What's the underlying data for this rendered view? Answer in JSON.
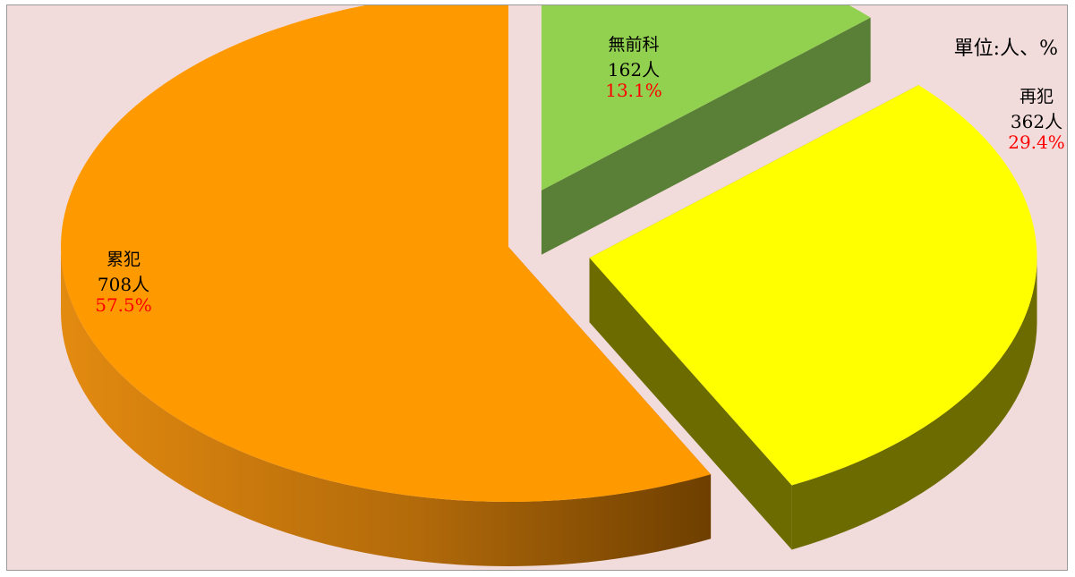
{
  "chart_data": {
    "type": "pie",
    "unit_label": "單位:人、%",
    "slices": [
      {
        "name": "無前科",
        "count_label": "162人",
        "value": 162,
        "percent_label": "13.1%",
        "color": "#92d050",
        "side_color": "#5a7f36",
        "exploded": true
      },
      {
        "name": "再犯",
        "count_label": "362人",
        "value": 362,
        "percent_label": "29.4%",
        "color": "#ffff00",
        "side_color": "#6b6b00",
        "exploded": true
      },
      {
        "name": "累犯",
        "count_label": "708人",
        "value": 708,
        "percent_label": "57.5%",
        "color": "#ff9900",
        "side_color": "#a85a00",
        "exploded": false
      }
    ],
    "percent_color": "#ff0000",
    "background": "#f2dcdb",
    "legend": "none"
  }
}
